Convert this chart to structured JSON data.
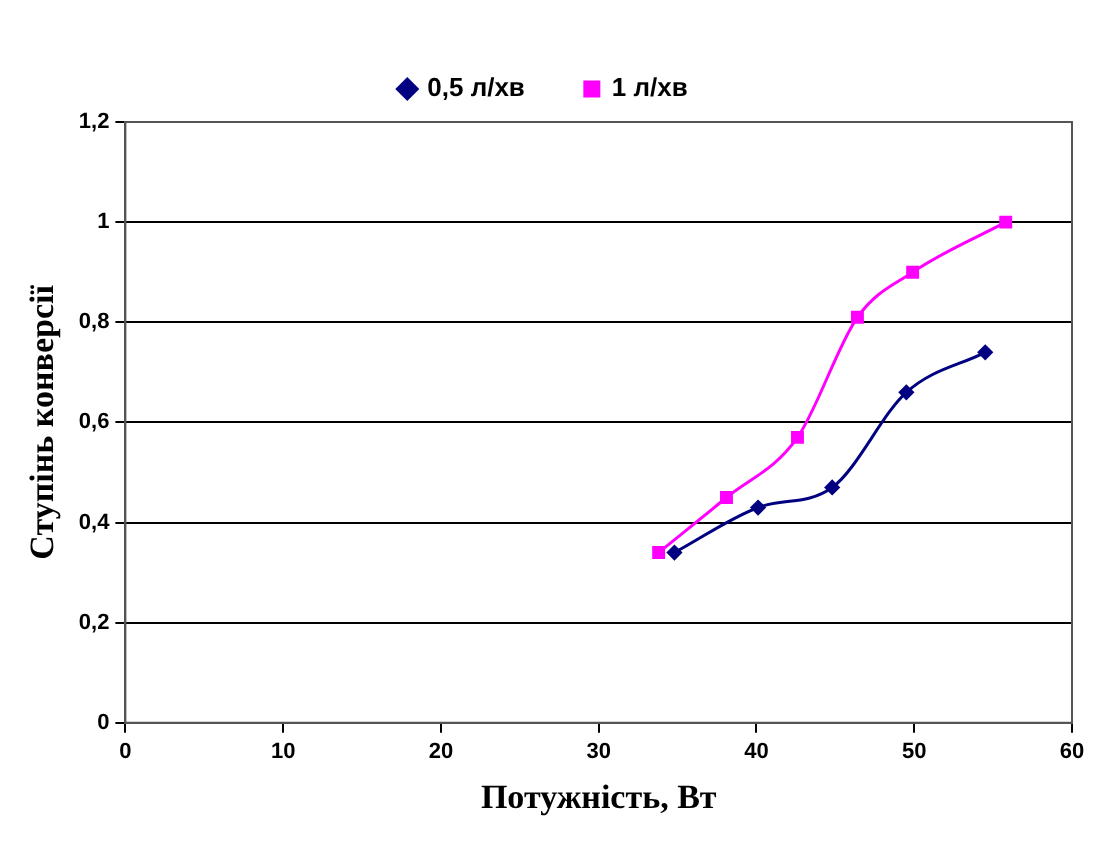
{
  "chart_data": {
    "type": "line",
    "xlabel": "Потужність, Вт",
    "ylabel": "Ступінь конверсії",
    "xlim": [
      0,
      60
    ],
    "xticks": [
      0,
      10,
      20,
      30,
      40,
      50,
      60
    ],
    "ylim": [
      0,
      1.2
    ],
    "yticks": [
      {
        "value": 0,
        "label": "0"
      },
      {
        "value": 0.2,
        "label": "0,2"
      },
      {
        "value": 0.4,
        "label": "0,4"
      },
      {
        "value": 0.6,
        "label": "0,6"
      },
      {
        "value": 0.8,
        "label": "0,8"
      },
      {
        "value": 1,
        "label": "1"
      },
      {
        "value": 1.2,
        "label": "1,2"
      }
    ],
    "grid": "y",
    "legend": "top",
    "series": [
      {
        "name": "0,5 л/хв",
        "color": "#000080",
        "marker": "diamond",
        "x": [
          34.8,
          40.1,
          44.8,
          49.5,
          54.5
        ],
        "values": [
          0.34,
          0.43,
          0.47,
          0.66,
          0.74
        ]
      },
      {
        "name": "1 л/хв",
        "color": "#ff00ff",
        "marker": "square",
        "x": [
          33.8,
          38.1,
          42.6,
          46.4,
          49.9,
          55.8
        ],
        "values": [
          0.34,
          0.45,
          0.57,
          0.81,
          0.9,
          1.0
        ]
      }
    ]
  }
}
